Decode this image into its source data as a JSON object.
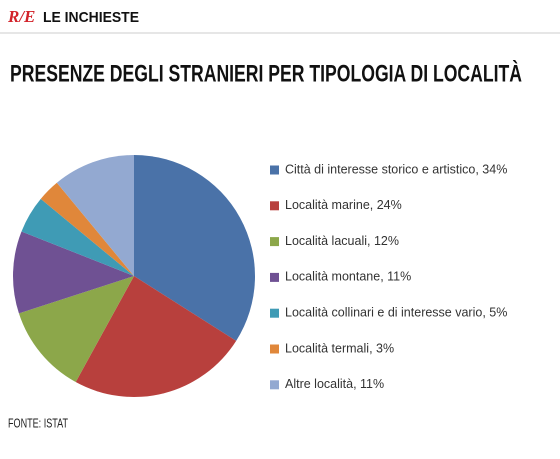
{
  "header": {
    "logo": "R/E",
    "section": "LE INCHIESTE"
  },
  "chart_data": {
    "type": "pie",
    "title": "PRESENZE DEGLI STRANIERI PER TIPOLOGIA DI LOCALITÀ",
    "categories": [
      "Città di interesse storico e artistico, 34%",
      "Località marine, 24%",
      "Località lacuali, 12%",
      "Località montane, 11%",
      "Località collinari e di interesse vario, 5%",
      "Località termali, 3%",
      "Altre località, 11%"
    ],
    "values": [
      34,
      24,
      12,
      11,
      5,
      3,
      11
    ],
    "colors": [
      "#4a72a8",
      "#b8403d",
      "#8ca74a",
      "#6f5193",
      "#3f9bb5",
      "#e0873a",
      "#93a9d1"
    ],
    "source": "FONTE: ISTAT"
  }
}
